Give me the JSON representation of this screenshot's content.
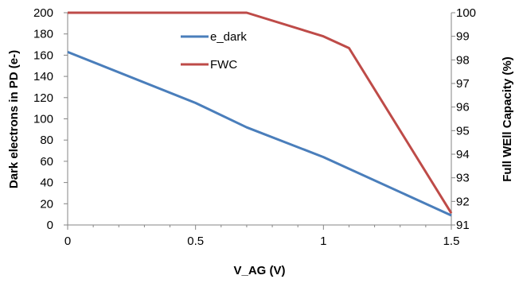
{
  "chart_data": {
    "type": "line",
    "xlabel": "V_AG (V)",
    "ylabel_left": "Dark electrons in PD (e-)",
    "ylabel_right": "Full WEll Capacity (%)",
    "xlim": [
      0,
      1.5
    ],
    "xticks": [
      "0",
      "0.5",
      "1",
      "1.5"
    ],
    "ylim_left": [
      0,
      200
    ],
    "yticks_left": [
      "0",
      "20",
      "40",
      "60",
      "80",
      "100",
      "120",
      "140",
      "160",
      "180",
      "200"
    ],
    "ylim_right": [
      91,
      100
    ],
    "yticks_right": [
      "91",
      "92",
      "93",
      "94",
      "95",
      "96",
      "97",
      "98",
      "99",
      "100"
    ],
    "grid": false,
    "legend_placement": "top-center inside plot",
    "series": [
      {
        "name": "e_dark",
        "axis": "left",
        "color": "#4a7ebb",
        "x": [
          0,
          0.5,
          0.7,
          1.0,
          1.5
        ],
        "y": [
          163,
          115,
          92,
          64,
          9
        ]
      },
      {
        "name": "FWC",
        "axis": "right",
        "color": "#be4b48",
        "x": [
          0,
          0.5,
          0.7,
          1.0,
          1.1,
          1.5
        ],
        "y": [
          100,
          100,
          100,
          99.0,
          98.5,
          91.5
        ]
      }
    ]
  }
}
